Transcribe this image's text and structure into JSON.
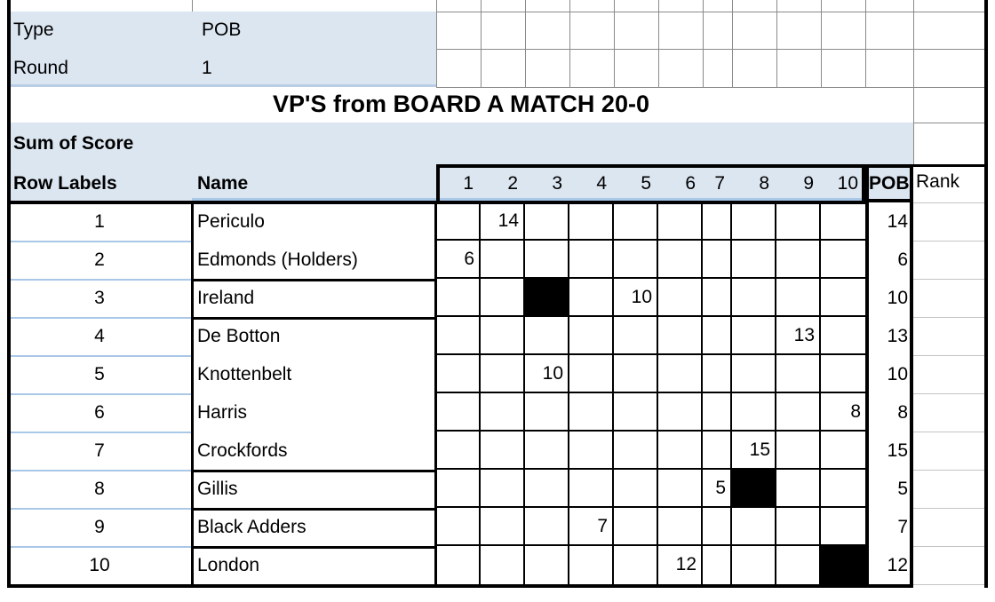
{
  "info": {
    "type_label": "Type",
    "type_value": "POB",
    "round_label": "Round",
    "round_value": "1"
  },
  "title": "VP'S from BOARD A MATCH 20-0",
  "pivot": {
    "sum_label": "Sum of Score",
    "row_labels_header": "Row Labels",
    "name_header": "Name",
    "board_columns": [
      "1",
      "2",
      "3",
      "4",
      "5",
      "6",
      "7",
      "8",
      "9",
      "10"
    ],
    "pob_header": "POB",
    "rank_header": "Rank"
  },
  "rows": [
    {
      "label": "1",
      "name": "Periculo",
      "scores": {
        "2": "14"
      },
      "blocked": null,
      "pob": "14",
      "rank": ""
    },
    {
      "label": "2",
      "name": "Edmonds (Holders)",
      "scores": {
        "1": "6"
      },
      "blocked": null,
      "pob": "6",
      "rank": ""
    },
    {
      "label": "3",
      "name": "Ireland",
      "scores": {
        "5": "10"
      },
      "blocked": 3,
      "pob": "10",
      "rank": ""
    },
    {
      "label": "4",
      "name": "De Botton",
      "scores": {
        "9": "13"
      },
      "blocked": null,
      "pob": "13",
      "rank": ""
    },
    {
      "label": "5",
      "name": "Knottenbelt",
      "scores": {
        "3": "10"
      },
      "blocked": null,
      "pob": "10",
      "rank": ""
    },
    {
      "label": "6",
      "name": "Harris",
      "scores": {
        "10": "8"
      },
      "blocked": null,
      "pob": "8",
      "rank": ""
    },
    {
      "label": "7",
      "name": "Crockfords",
      "scores": {
        "8": "15"
      },
      "blocked": null,
      "pob": "15",
      "rank": ""
    },
    {
      "label": "8",
      "name": "Gillis",
      "scores": {
        "7": "5"
      },
      "blocked": 8,
      "pob": "5",
      "rank": ""
    },
    {
      "label": "9",
      "name": "Black Adders",
      "scores": {
        "4": "7"
      },
      "blocked": null,
      "pob": "7",
      "rank": ""
    },
    {
      "label": "10",
      "name": "London",
      "scores": {
        "6": "12"
      },
      "blocked": 10,
      "pob": "12",
      "rank": ""
    }
  ],
  "name_groups": [
    2,
    1,
    4,
    1,
    1,
    1
  ],
  "colors": {
    "header_fill": "#dce6f1",
    "fill_edge": "#b9cde4",
    "row_separator": "#a9c7e7",
    "grid_strong": "#000000",
    "grid_light": "#8a8a8a",
    "grid_faint": "#c4c4c4",
    "blocked_cell": "#000000"
  }
}
